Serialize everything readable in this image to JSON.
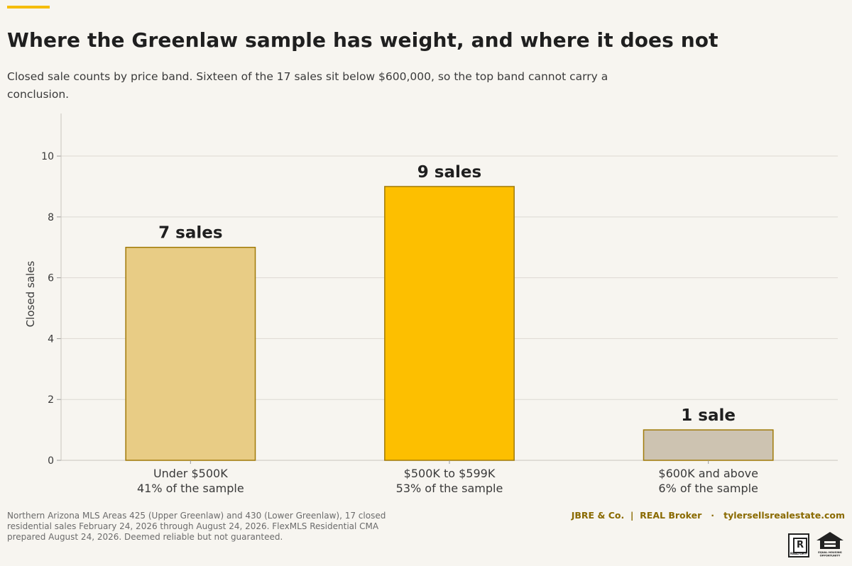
{
  "title": "Where the Greenlaw sample has weight, and where it does not",
  "subtitle": "Closed sale counts by price band. Sixteen of the 17 sales sit below $600,000, so the top band cannot carry a conclusion.",
  "chart_data": {
    "type": "bar",
    "categories": [
      "Under $500K",
      "$500K to $599K",
      "$600K and above"
    ],
    "category_notes": [
      "41% of the sample",
      "53% of the sample",
      "6% of the sample"
    ],
    "values": [
      7,
      9,
      1
    ],
    "data_labels": [
      "7 sales",
      "9 sales",
      "1 sale"
    ],
    "bar_colors": [
      "#e8cc85",
      "#fdbf00",
      "#cdc3b1"
    ],
    "bar_edge_color": "#a07a08",
    "ylabel": "Closed sales",
    "xlabel": "",
    "ylim": [
      0,
      11.4
    ],
    "yticks": [
      0,
      2,
      4,
      6,
      8,
      10
    ],
    "grid": true
  },
  "footer": {
    "source": "Northern Arizona MLS Areas 425 (Upper Greenlaw) and 430 (Lower Greenlaw), 17 closed residential sales February 24, 2026 through August 24, 2026. FlexMLS Residential CMA prepared August 24, 2026. Deemed reliable but not guaranteed.",
    "brand": "JBRE & Co.  |  REAL Broker   ·   tylersellsrealestate.com"
  },
  "logos": {
    "realtor_mark": "R",
    "realtor_text": "REALTOR®",
    "eho_text": "EQUAL HOUSING OPPORTUNITY",
    "icons": [
      "realtor-logo-icon",
      "equal-housing-opportunity-icon"
    ]
  },
  "colors": {
    "accent": "#f5bd0a",
    "brand": "#8a6a00",
    "background": "#f7f5f0"
  }
}
